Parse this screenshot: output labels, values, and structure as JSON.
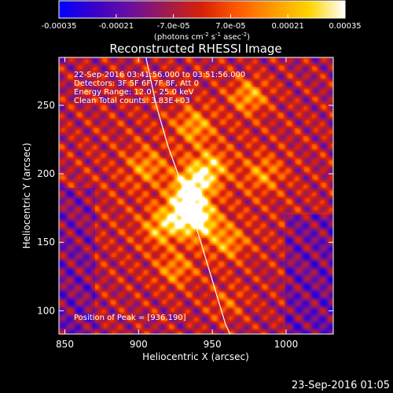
{
  "colorbar": {
    "ticks": [
      "-0.00035",
      "-0.00021",
      "-7.0e-05",
      "7.0e-05",
      "0.00021",
      "0.00035"
    ],
    "tick_values": [
      -0.00035,
      -0.00021,
      -7e-05,
      7e-05,
      0.00021,
      0.00035
    ],
    "range": [
      -0.00035,
      0.00035
    ],
    "unit_label": "(photons cm",
    "unit_exp1": "-2",
    "unit_mid": " s",
    "unit_exp2": "-1",
    "unit_tail": " asec",
    "unit_exp3": "-2",
    "unit_close": ")",
    "colors": [
      "#0000ff",
      "#3a00c8",
      "#6a0fa0",
      "#a01a50",
      "#d82008",
      "#ff5a00",
      "#ff9a00",
      "#ffd400",
      "#ffffff"
    ]
  },
  "chart_data": {
    "type": "heatmap",
    "title": "Reconstructed RHESSI Image",
    "xlabel": "Heliocentric X (arcsec)",
    "ylabel": "Heliocentric Y (arcsec)",
    "xlim": [
      846,
      1032
    ],
    "ylim": [
      83,
      285
    ],
    "x_ticks": [
      850,
      900,
      950,
      1000
    ],
    "y_ticks": [
      100,
      150,
      200,
      250
    ],
    "x_tick_labels": [
      "850",
      "900",
      "950",
      "1000"
    ],
    "y_tick_labels": [
      "100",
      "150",
      "200",
      "250"
    ],
    "annotations": {
      "time_range": "22-Sep-2016 03:41:56.000 to 03:51:56.000",
      "detectors": "Detectors: 3F 5F 6F 7F 8F, Att 0",
      "energy": "Energy Range: 12.0 - 25.0 keV",
      "clean": "Clean     Total counts: 3.83E+03",
      "peak": "Position of Peak = [936,190]"
    },
    "peak": [
      936,
      190
    ],
    "limb": [
      [
        905,
        285
      ],
      [
        912,
        250
      ],
      [
        920,
        220
      ],
      [
        930,
        190
      ],
      [
        938,
        165
      ],
      [
        945,
        140
      ],
      [
        952,
        115
      ],
      [
        959,
        90
      ],
      [
        962,
        83
      ]
    ],
    "bright_sources": [
      {
        "x": 936,
        "y": 190,
        "level": 1.0
      },
      {
        "x": 941,
        "y": 166,
        "level": 0.85
      },
      {
        "x": 930,
        "y": 172,
        "level": 0.8
      },
      {
        "x": 948,
        "y": 205,
        "level": 0.65
      },
      {
        "x": 938,
        "y": 235,
        "level": 0.55
      },
      {
        "x": 975,
        "y": 257,
        "level": 0.6
      },
      {
        "x": 915,
        "y": 160,
        "level": 0.55
      },
      {
        "x": 960,
        "y": 150,
        "level": 0.5
      },
      {
        "x": 905,
        "y": 205,
        "level": 0.45
      },
      {
        "x": 925,
        "y": 130,
        "level": 0.45
      },
      {
        "x": 985,
        "y": 200,
        "level": 0.45
      },
      {
        "x": 960,
        "y": 105,
        "level": 0.3
      }
    ]
  },
  "footer": {
    "timestamp": "23-Sep-2016 01:05"
  }
}
